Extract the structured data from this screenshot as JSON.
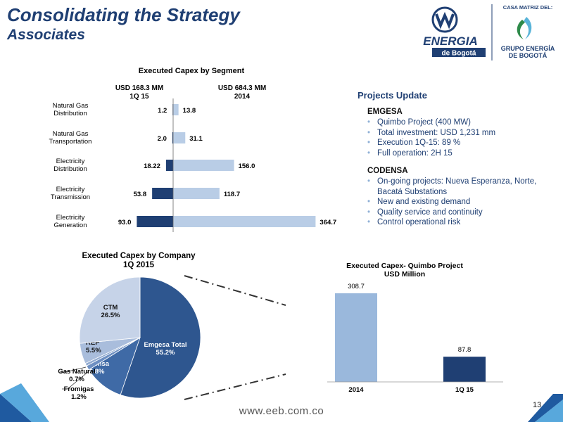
{
  "header": {
    "title": "Consolidating the Strategy",
    "subtitle": "Associates"
  },
  "logo": {
    "brand_line1": "ENERGIA",
    "brand_line2": "de Bogotá",
    "parent_caption": "CASA MATRIZ DEL:",
    "parent_line1": "GRUPO ENERGÍA",
    "parent_line2": "DE BOGOTÁ"
  },
  "projects": {
    "heading": "Projects Update",
    "sections": [
      {
        "name": "EMGESA",
        "items": [
          "Quimbo Project (400 MW)",
          "Total investment: USD 1,231 mm",
          "Execution 1Q-15: 89 %",
          "Full operation: 2H 15"
        ]
      },
      {
        "name": "CODENSA",
        "items": [
          "On-going projects: Nueva Esperanza, Norte, Bacatá Substations",
          "New and existing demand",
          "Quality service and continuity",
          "Control operational risk"
        ]
      }
    ]
  },
  "chart_data": [
    {
      "type": "bar",
      "orientation": "horizontal-butterfly",
      "title": "Executed Capex by Segment",
      "categories": [
        [
          "Natural Gas",
          "Distribution"
        ],
        [
          "Natural Gas",
          "Transportation"
        ],
        [
          "Electricity",
          "Distribution"
        ],
        [
          "Electricity",
          "Transmission"
        ],
        [
          "Electricity",
          "Generation"
        ]
      ],
      "series": [
        {
          "name": "USD 168.3 MM|1Q 15",
          "values": [
            1.2,
            2.0,
            18.22,
            53.8,
            93.0
          ],
          "labels": [
            "1.2",
            "2.0",
            "18.22",
            "53.8",
            "93.0"
          ],
          "color": "#1f3f73"
        },
        {
          "name": "USD 684.3 MM|2014",
          "values": [
            13.8,
            31.1,
            156.0,
            118.7,
            364.7
          ],
          "labels": [
            "13.8",
            "31.1",
            "156.0",
            "118.7",
            "364.7"
          ],
          "color": "#b9cde6"
        }
      ]
    },
    {
      "type": "pie",
      "title": "Executed Capex by Company|1Q 2015",
      "slices": [
        {
          "label": "Emgesa Total",
          "value": 55.2,
          "text": "55.2%",
          "color": "#2e568f"
        },
        {
          "label": "Codensa",
          "value": 10.8,
          "text": "10.8%",
          "color": "#3f6aa6"
        },
        {
          "label": "Fromigas",
          "value": 1.2,
          "text": "1.2%",
          "color": "#6d8fc2"
        },
        {
          "label": "Gas Natural",
          "value": 0.7,
          "text": "0.7%",
          "color": "#8fa9d0"
        },
        {
          "label": "REP",
          "value": 5.5,
          "text": "5.5%",
          "color": "#a9bddc"
        },
        {
          "label": "CTM",
          "value": 26.5,
          "text": "26.5%",
          "color": "#c6d3e8"
        }
      ]
    },
    {
      "type": "bar",
      "title": "Executed Capex- Quimbo Project|USD Million",
      "categories": [
        "2014",
        "1Q 15"
      ],
      "values": [
        308.7,
        87.8
      ],
      "labels": [
        "308.7",
        "87.8"
      ],
      "colors": [
        "#9ab8dc",
        "#1f3f73"
      ]
    }
  ],
  "footer": {
    "url": "www.eeb.com.co",
    "page": "13"
  }
}
